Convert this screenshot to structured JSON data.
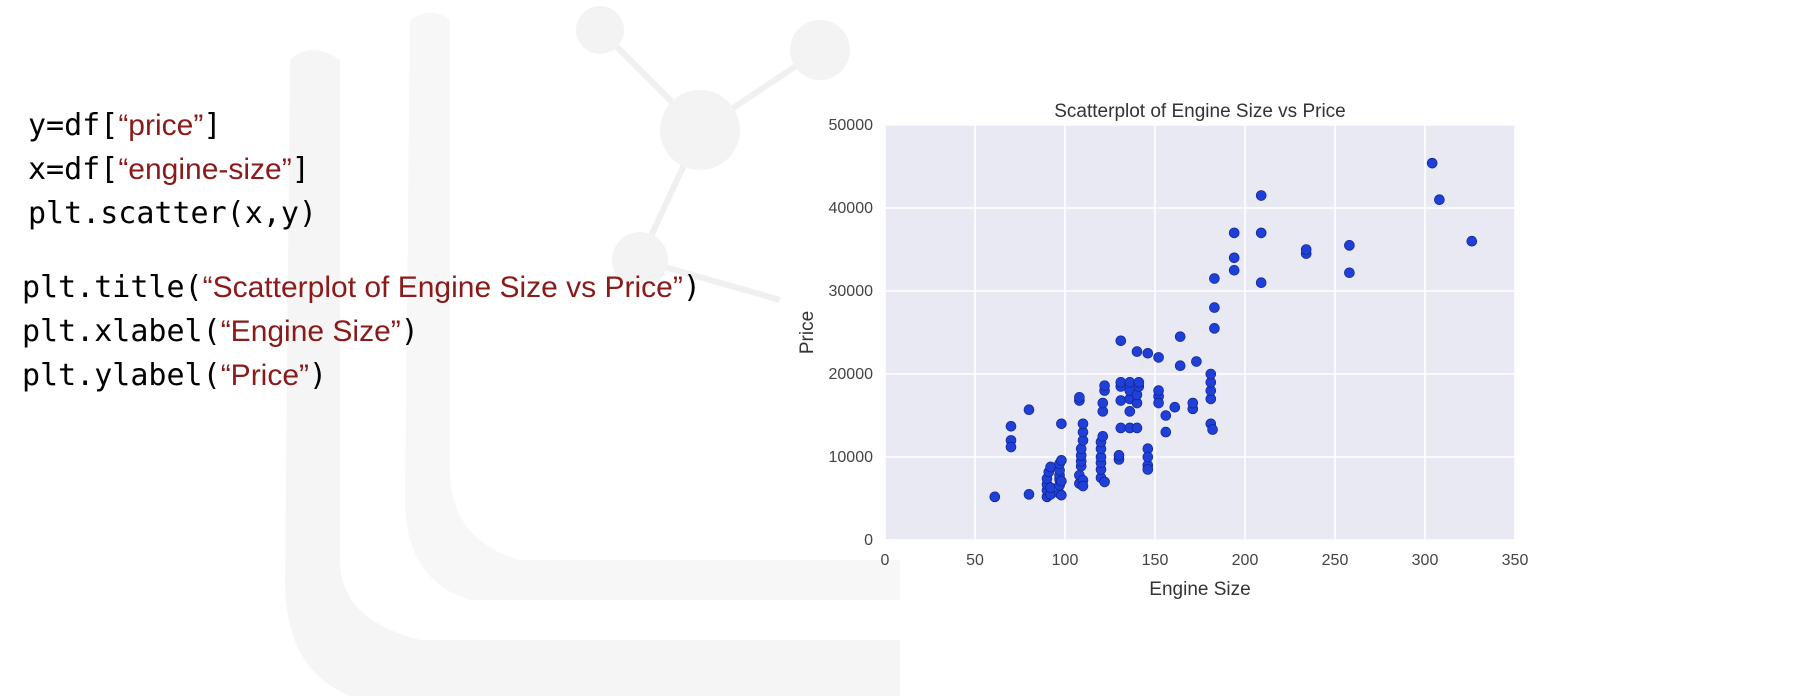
{
  "code": {
    "block1": [
      {
        "pre": "y=df[",
        "str": "“price”",
        "post": "]"
      },
      {
        "pre": "x=df[",
        "str": "“engine-size”",
        "post": "]"
      },
      {
        "pre": "plt.scatter(x,y)",
        "str": "",
        "post": ""
      }
    ],
    "block2": [
      {
        "pre": "plt.title(",
        "str": "“Scatterplot of Engine Size vs Price”",
        "post": ")"
      },
      {
        "pre": "plt.xlabel(",
        "str": "“Engine Size”",
        "post": ")"
      },
      {
        "pre": "plt.ylabel(",
        "str": "“Price”",
        "post": ")"
      }
    ],
    "string_color": "#8b1a1a"
  },
  "chart_data": {
    "type": "scatter",
    "title": "Scatterplot of Engine Size vs Price",
    "xlabel": "Engine Size",
    "ylabel": "Price",
    "xlim": [
      0,
      350
    ],
    "ylim": [
      0,
      50000
    ],
    "xticks": [
      0,
      50,
      100,
      150,
      200,
      250,
      300,
      350
    ],
    "yticks": [
      0,
      10000,
      20000,
      30000,
      40000,
      50000
    ],
    "grid": true,
    "background_color": "#e8e9f3",
    "point_color": "#1f3fd6",
    "points": [
      [
        61,
        5200
      ],
      [
        70,
        13700
      ],
      [
        70,
        12000
      ],
      [
        70,
        11200
      ],
      [
        80,
        15700
      ],
      [
        80,
        5500
      ],
      [
        90,
        5200
      ],
      [
        90,
        6000
      ],
      [
        90,
        6700
      ],
      [
        90,
        7400
      ],
      [
        91,
        8200
      ],
      [
        92,
        8800
      ],
      [
        92,
        5500
      ],
      [
        92,
        6300
      ],
      [
        97,
        5600
      ],
      [
        97,
        6600
      ],
      [
        97,
        7300
      ],
      [
        97,
        7800
      ],
      [
        97,
        8400
      ],
      [
        97,
        9200
      ],
      [
        98,
        9600
      ],
      [
        98,
        7100
      ],
      [
        98,
        5400
      ],
      [
        98,
        14000
      ],
      [
        108,
        6800
      ],
      [
        108,
        7800
      ],
      [
        109,
        8900
      ],
      [
        109,
        9500
      ],
      [
        109,
        10200
      ],
      [
        109,
        11000
      ],
      [
        110,
        12000
      ],
      [
        110,
        13000
      ],
      [
        110,
        14000
      ],
      [
        108,
        16800
      ],
      [
        108,
        17200
      ],
      [
        110,
        7200
      ],
      [
        110,
        6500
      ],
      [
        120,
        7500
      ],
      [
        120,
        8500
      ],
      [
        120,
        9300
      ],
      [
        120,
        10000
      ],
      [
        120,
        11000
      ],
      [
        120,
        11800
      ],
      [
        121,
        12500
      ],
      [
        121,
        15500
      ],
      [
        121,
        16500
      ],
      [
        122,
        18000
      ],
      [
        122,
        18600
      ],
      [
        122,
        7000
      ],
      [
        130,
        9700
      ],
      [
        130,
        10200
      ],
      [
        131,
        13500
      ],
      [
        131,
        16800
      ],
      [
        131,
        18500
      ],
      [
        131,
        19000
      ],
      [
        131,
        24000
      ],
      [
        136,
        13500
      ],
      [
        136,
        15500
      ],
      [
        136,
        17000
      ],
      [
        136,
        18000
      ],
      [
        136,
        19000
      ],
      [
        140,
        13500
      ],
      [
        140,
        16500
      ],
      [
        140,
        17500
      ],
      [
        140,
        22700
      ],
      [
        141,
        18500
      ],
      [
        141,
        19000
      ],
      [
        146,
        22500
      ],
      [
        146,
        11000
      ],
      [
        146,
        9000
      ],
      [
        146,
        8500
      ],
      [
        146,
        10000
      ],
      [
        152,
        17300
      ],
      [
        152,
        18000
      ],
      [
        152,
        16500
      ],
      [
        152,
        22000
      ],
      [
        156,
        13000
      ],
      [
        156,
        15000
      ],
      [
        161,
        16000
      ],
      [
        164,
        21000
      ],
      [
        164,
        24500
      ],
      [
        171,
        15800
      ],
      [
        171,
        16500
      ],
      [
        173,
        21500
      ],
      [
        181,
        14000
      ],
      [
        181,
        17000
      ],
      [
        181,
        18000
      ],
      [
        181,
        19000
      ],
      [
        181,
        20000
      ],
      [
        182,
        13300
      ],
      [
        183,
        25500
      ],
      [
        183,
        28000
      ],
      [
        183,
        31500
      ],
      [
        194,
        32500
      ],
      [
        194,
        34000
      ],
      [
        194,
        37000
      ],
      [
        209,
        31000
      ],
      [
        209,
        37000
      ],
      [
        209,
        41500
      ],
      [
        234,
        34500
      ],
      [
        234,
        35000
      ],
      [
        258,
        32200
      ],
      [
        258,
        35500
      ],
      [
        304,
        45400
      ],
      [
        308,
        41000
      ],
      [
        326,
        36000
      ]
    ]
  }
}
